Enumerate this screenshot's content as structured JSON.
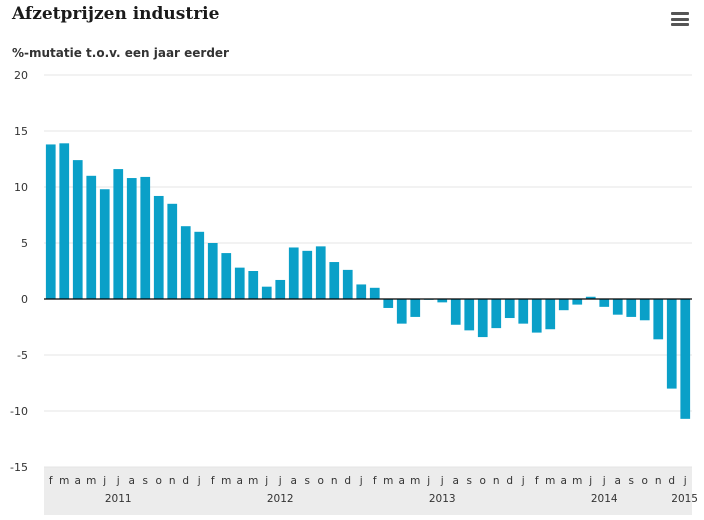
{
  "header": {
    "title": "Afzetprijzen industrie",
    "menu_icon": "hamburger-menu-icon"
  },
  "colors": {
    "bar": "#0aa0c8",
    "axis_band": "#ececec",
    "grid": "#e4e4e4",
    "zero_line": "#000000"
  },
  "chart_data": {
    "type": "bar",
    "title": "Afzetprijzen industrie",
    "ylabel": "%-mutatie t.o.v. een jaar eerder",
    "xlabel": "",
    "ylim": [
      -15,
      20
    ],
    "yticks": [
      20,
      15,
      10,
      5,
      0,
      -5,
      -10,
      -15
    ],
    "grid": true,
    "legend": "none",
    "categories": [
      "f",
      "m",
      "a",
      "m",
      "j",
      "j",
      "a",
      "s",
      "o",
      "n",
      "d",
      "j",
      "f",
      "m",
      "a",
      "m",
      "j",
      "j",
      "a",
      "s",
      "o",
      "n",
      "d",
      "j",
      "f",
      "m",
      "a",
      "m",
      "j",
      "j",
      "a",
      "s",
      "o",
      "n",
      "d",
      "j",
      "f",
      "m",
      "a",
      "m",
      "j",
      "j",
      "a",
      "s",
      "o",
      "n",
      "d",
      "j"
    ],
    "values": [
      13.8,
      13.9,
      12.4,
      11.0,
      9.8,
      11.6,
      10.8,
      10.9,
      9.2,
      8.5,
      6.5,
      6.0,
      5.0,
      4.1,
      2.8,
      2.5,
      1.1,
      1.7,
      4.6,
      4.3,
      4.7,
      3.3,
      2.6,
      1.3,
      1.0,
      -0.8,
      -2.2,
      -1.6,
      0.0,
      -0.3,
      -2.3,
      -2.8,
      -3.4,
      -2.6,
      -1.7,
      -2.2,
      -3.0,
      -2.7,
      -1.0,
      -0.5,
      0.2,
      -0.7,
      -1.4,
      -1.6,
      -1.9,
      -3.6,
      -8.0,
      -10.7
    ],
    "year_labels": [
      "2011",
      "2012",
      "2013",
      "2014",
      "2015"
    ]
  }
}
